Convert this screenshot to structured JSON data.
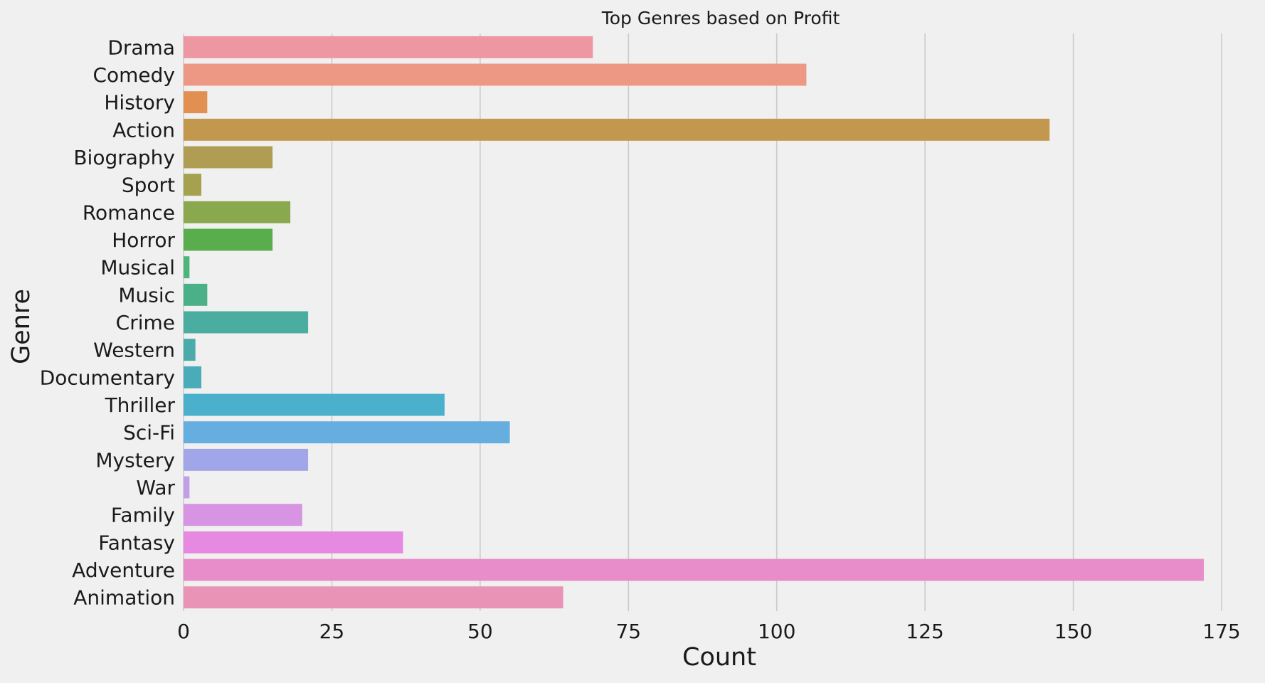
{
  "chart_data": {
    "type": "bar",
    "orientation": "horizontal",
    "title": "Top Genres based on Profit",
    "xlabel": "Count",
    "ylabel": "Genre",
    "xlim": [
      0,
      178
    ],
    "xticks": [
      0,
      25,
      50,
      75,
      100,
      125,
      150,
      175
    ],
    "grid": "vertical",
    "categories": [
      "Drama",
      "Comedy",
      "History",
      "Action",
      "Biography",
      "Sport",
      "Romance",
      "Horror",
      "Musical",
      "Music",
      "Crime",
      "Western",
      "Documentary",
      "Thriller",
      "Sci-Fi",
      "Mystery",
      "War",
      "Family",
      "Fantasy",
      "Adventure",
      "Animation"
    ],
    "values": [
      69,
      105,
      4,
      146,
      15,
      3,
      18,
      15,
      1,
      4,
      21,
      2,
      3,
      44,
      55,
      21,
      1,
      20,
      37,
      172,
      64
    ],
    "colors": [
      "#ed97a3",
      "#ec9885",
      "#e28f52",
      "#c2984f",
      "#af9d53",
      "#a5a14f",
      "#8aa84d",
      "#5aad4d",
      "#4fb47a",
      "#4ab088",
      "#4aad9f",
      "#4aabaa",
      "#4aacb9",
      "#4ab0cc",
      "#66aedf",
      "#a1a6e8",
      "#c39ee8",
      "#d694e3",
      "#e689e0",
      "#e88dc9",
      "#e993b6"
    ]
  }
}
